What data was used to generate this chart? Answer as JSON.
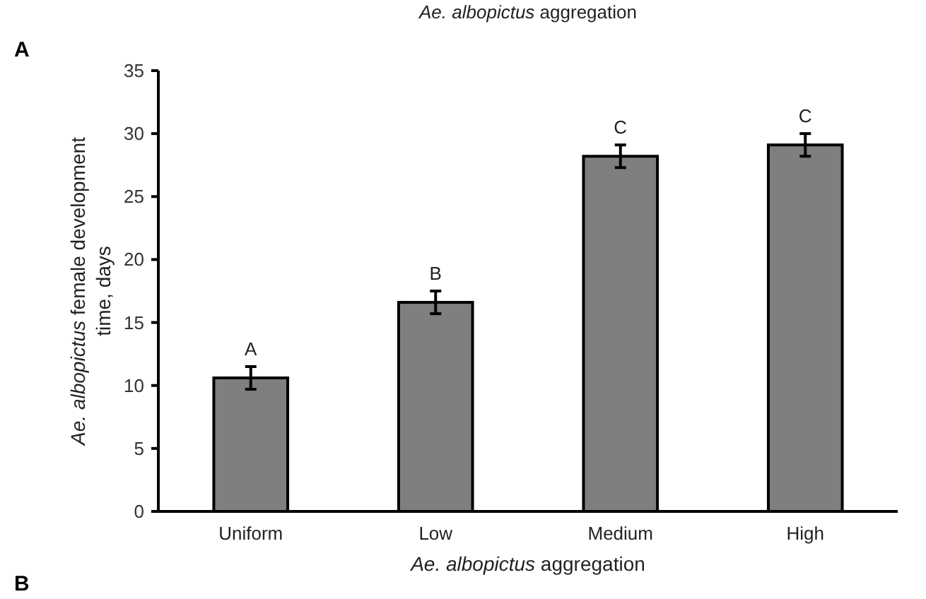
{
  "chart_data": {
    "type": "bar",
    "ylabel": "Ae. albopictus female development time, days",
    "xlabel": "Ae. albopictus aggregation",
    "categories": [
      "Uniform",
      "Low",
      "Medium",
      "High"
    ],
    "values": [
      10.6,
      16.6,
      28.2,
      29.1
    ],
    "errors": [
      0.9,
      0.9,
      0.9,
      0.9
    ],
    "color": "#7f7f7f",
    "ylim": [
      0,
      35
    ],
    "yticks": [
      0,
      5,
      10,
      15,
      20,
      25,
      30,
      35
    ],
    "grid": false,
    "annotations": [
      {
        "text": "A",
        "x": "Uniform",
        "y": 11.5
      },
      {
        "text": "B",
        "x": "Low",
        "y": 17.5
      },
      {
        "text": "C",
        "x": "Medium",
        "y": 29.1
      },
      {
        "text": "C",
        "x": "High",
        "y": 30.0
      },
      "Ae. albopictus aggregation",
      "A",
      "B"
    ]
  }
}
